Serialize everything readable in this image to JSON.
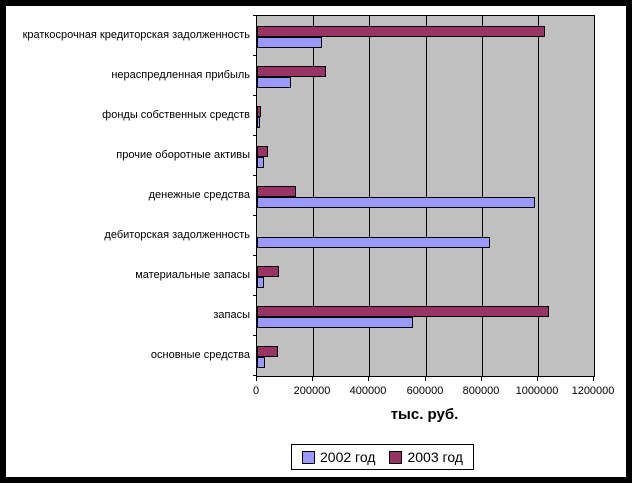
{
  "axis_title": "тыс. руб.",
  "chart_data": {
    "type": "bar",
    "orientation": "horizontal",
    "title": "",
    "xlabel": "тыс. руб.",
    "ylabel": "",
    "xlim": [
      0,
      1200000
    ],
    "x_ticks": [
      0,
      200000,
      400000,
      600000,
      800000,
      1000000,
      1200000
    ],
    "x_tick_labels": [
      "0",
      "200000",
      "400000",
      "600000",
      "800000",
      "1000000",
      "1200000"
    ],
    "grid": true,
    "plot_background": "#C0C0C0",
    "legend_position": "bottom",
    "categories": [
      "краткосрочная кредиторская задолженность",
      "нераспредленная прибыль",
      "фонды собственных средств",
      "прочие оборотные активы",
      "денежные средства",
      "дебиторская задолженность",
      "материальные запасы",
      "запасы",
      "основные средства"
    ],
    "series": [
      {
        "name": "2002 год",
        "color": "#9999FF",
        "values": [
          230000,
          120000,
          10000,
          25000,
          990000,
          830000,
          25000,
          555000,
          30000
        ]
      },
      {
        "name": "2003 год",
        "color": "#993366",
        "values": [
          1025000,
          245000,
          13000,
          40000,
          140000,
          0,
          78000,
          1040000,
          75000
        ]
      }
    ]
  },
  "legend": {
    "items": [
      {
        "label": "2002 год",
        "color": "#9999FF"
      },
      {
        "label": "2003 год",
        "color": "#993366"
      }
    ]
  }
}
